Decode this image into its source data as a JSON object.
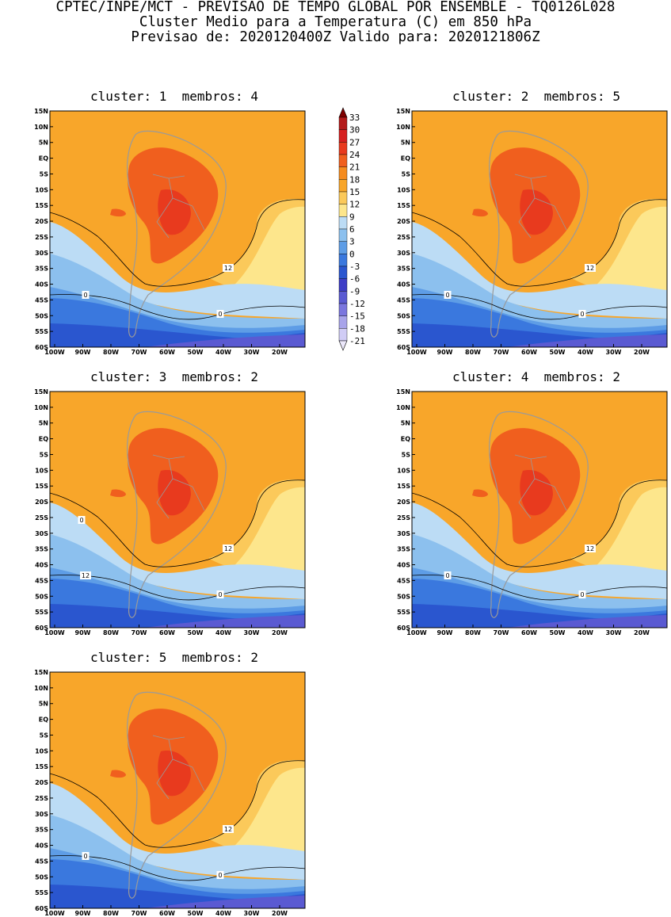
{
  "header": {
    "line1": "CPTEC/INPE/MCT - PREVISAO DE TEMPO GLOBAL POR ENSEMBLE - TQ0126L028",
    "line2": "Cluster Medio para a Temperatura (C) em 850 hPa",
    "line3": "Previsao de: 2020120400Z   Valido para: 2020121806Z"
  },
  "lat_labels": [
    "15N",
    "10N",
    "5N",
    "EQ",
    "5S",
    "10S",
    "15S",
    "20S",
    "25S",
    "30S",
    "35S",
    "40S",
    "45S",
    "50S",
    "55S",
    "60S"
  ],
  "lon_labels": [
    "100W",
    "90W",
    "80W",
    "70W",
    "60W",
    "50W",
    "40W",
    "30W",
    "20W"
  ],
  "colorbar": {
    "labels": [
      "33",
      "30",
      "27",
      "24",
      "21",
      "18",
      "15",
      "12",
      "9",
      "6",
      "3",
      "0",
      "-3",
      "-6",
      "-9",
      "-12",
      "-15",
      "-18",
      "-21"
    ],
    "colors": [
      "#7f0000",
      "#b41b1b",
      "#d62020",
      "#e83a1e",
      "#f05f1e",
      "#f58c1f",
      "#f8a62a",
      "#fbc95a",
      "#fde68c",
      "#bcdcf5",
      "#8cc0ee",
      "#5e9de6",
      "#3a78de",
      "#2a56cf",
      "#3d3dc6",
      "#5a5ad2",
      "#7a76de",
      "#a8a4ea",
      "#d0ccf5",
      "#ece8fb"
    ],
    "colors_note": "top triangle to bottom triangle"
  },
  "panels": [
    {
      "title": "cluster: 1  membros: 4",
      "contour_labels": [
        "12",
        "0",
        "0"
      ]
    },
    {
      "title": "cluster: 2  membros: 5",
      "contour_labels": [
        "12",
        "0",
        "0"
      ]
    },
    {
      "title": "cluster: 3  membros: 2",
      "contour_labels": [
        "12",
        "12",
        "0",
        "0"
      ]
    },
    {
      "title": "cluster: 4  membros: 2",
      "contour_labels": [
        "12",
        "0",
        "0"
      ]
    },
    {
      "title": "cluster: 5  membros: 2",
      "contour_labels": [
        "12",
        "0",
        "0"
      ]
    }
  ]
}
